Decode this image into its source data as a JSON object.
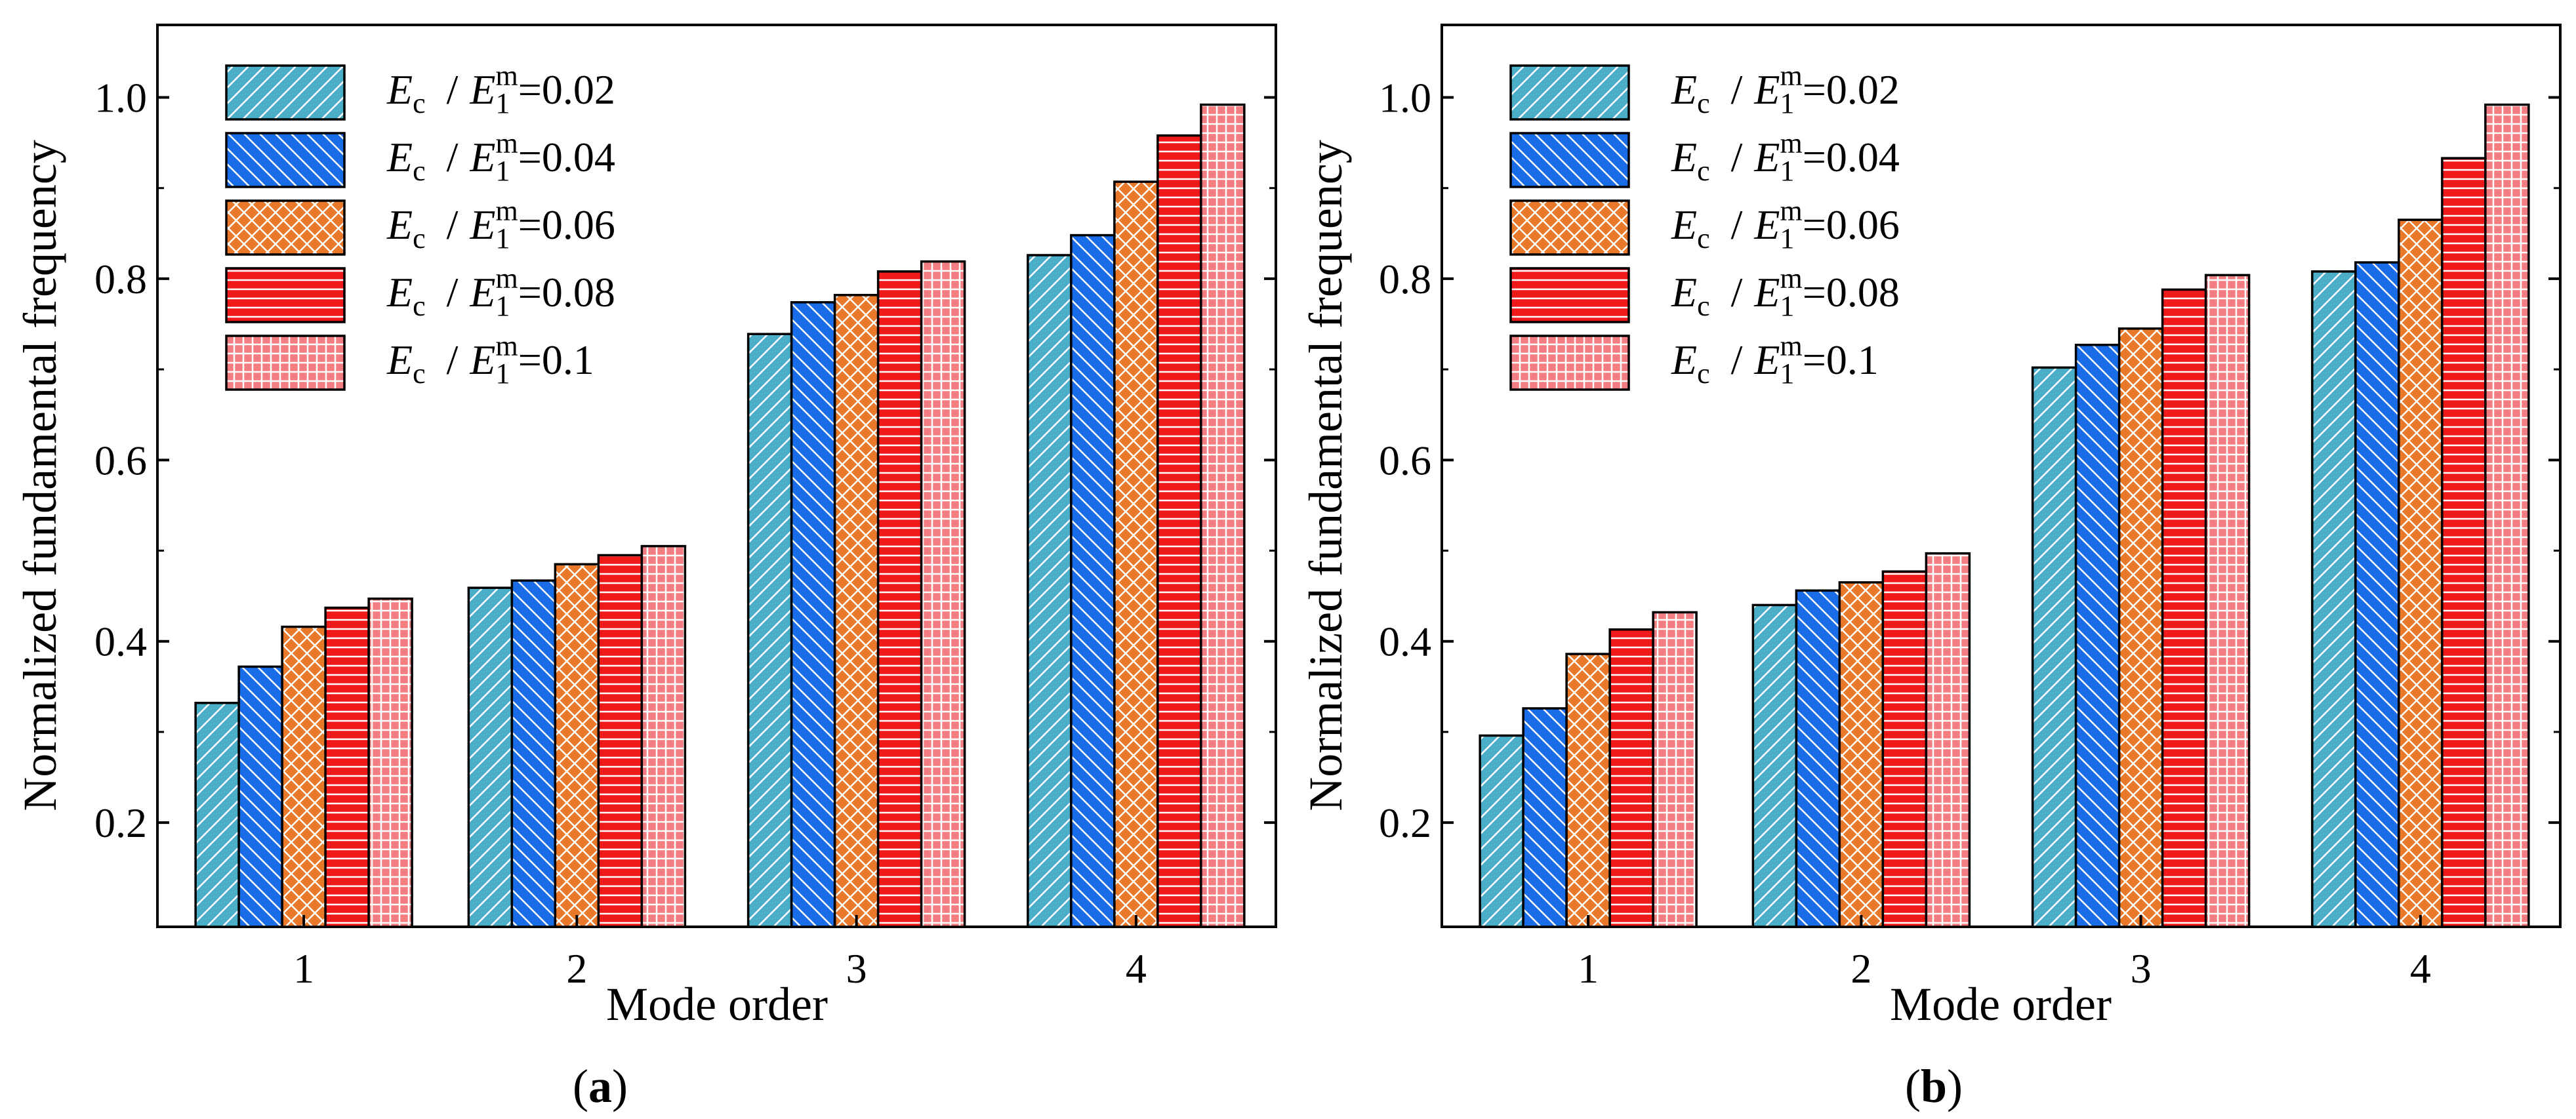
{
  "chart_data": [
    {
      "type": "bar",
      "panel_label": "a",
      "categories": [
        "1",
        "2",
        "3",
        "4"
      ],
      "xlabel": "Mode order",
      "ylabel": "Normalized fundamental frequency",
      "ylim": [
        0.085,
        1.08
      ],
      "yticks": [
        "0.2",
        "0.4",
        "0.6",
        "0.8",
        "1.0"
      ],
      "series": [
        {
          "name": "E_c / E_1^m = 0.02",
          "values": [
            0.332,
            0.459,
            0.739,
            0.826
          ]
        },
        {
          "name": "E_c / E_1^m = 0.04",
          "values": [
            0.372,
            0.467,
            0.774,
            0.848
          ]
        },
        {
          "name": "E_c / E_1^m = 0.06",
          "values": [
            0.416,
            0.485,
            0.782,
            0.907
          ]
        },
        {
          "name": "E_c / E_1^m = 0.08",
          "values": [
            0.437,
            0.495,
            0.808,
            0.958
          ]
        },
        {
          "name": "E_c / E_1^m = 0.1",
          "values": [
            0.447,
            0.505,
            0.819,
            0.992
          ]
        }
      ]
    },
    {
      "type": "bar",
      "panel_label": "b",
      "categories": [
        "1",
        "2",
        "3",
        "4"
      ],
      "xlabel": "Mode order",
      "ylabel": "Normalized fundamental frequency",
      "ylim": [
        0.085,
        1.08
      ],
      "yticks": [
        "0.2",
        "0.4",
        "0.6",
        "0.8",
        "1.0"
      ],
      "series": [
        {
          "name": "E_c / E_1^m = 0.02",
          "values": [
            0.296,
            0.44,
            0.702,
            0.808
          ]
        },
        {
          "name": "E_c / E_1^m = 0.04",
          "values": [
            0.326,
            0.456,
            0.727,
            0.818
          ]
        },
        {
          "name": "E_c / E_1^m = 0.06",
          "values": [
            0.386,
            0.465,
            0.745,
            0.865
          ]
        },
        {
          "name": "E_c / E_1^m = 0.08",
          "values": [
            0.413,
            0.477,
            0.788,
            0.933
          ]
        },
        {
          "name": "E_c / E_1^m = 0.1",
          "values": [
            0.432,
            0.497,
            0.804,
            0.992
          ]
        }
      ]
    }
  ],
  "legend": [
    {
      "E": "E",
      "sub_c": "c",
      "slash": "/",
      "E1": "E",
      "sub_1": "1",
      "sup_m": "m",
      "eq": "=",
      "value": "0.02",
      "color": "#4BAEC8",
      "pattern": "hatch-up"
    },
    {
      "E": "E",
      "sub_c": "c",
      "slash": "/",
      "E1": "E",
      "sub_1": "1",
      "sup_m": "m",
      "eq": "=",
      "value": "0.04",
      "color": "#1A6DE8",
      "pattern": "hatch-down"
    },
    {
      "E": "E",
      "sub_c": "c",
      "slash": "/",
      "E1": "E",
      "sub_1": "1",
      "sup_m": "m",
      "eq": "=",
      "value": "0.06",
      "color": "#E8792A",
      "pattern": "crosshatch"
    },
    {
      "E": "E",
      "sub_c": "c",
      "slash": "/",
      "E1": "E",
      "sub_1": "1",
      "sup_m": "m",
      "eq": "=",
      "value": "0.08",
      "color": "#F01A1A",
      "pattern": "horizontal"
    },
    {
      "E": "E",
      "sub_c": "c",
      "slash": "/",
      "E1": "E",
      "sub_1": "1",
      "sup_m": "m",
      "eq": "=",
      "value": "0.1",
      "color": "#F27D83",
      "pattern": "grid"
    }
  ],
  "labels": {
    "a": {
      "open": "(",
      "letter": "a",
      "close": ")"
    },
    "b": {
      "open": "(",
      "letter": "b",
      "close": ")"
    }
  }
}
